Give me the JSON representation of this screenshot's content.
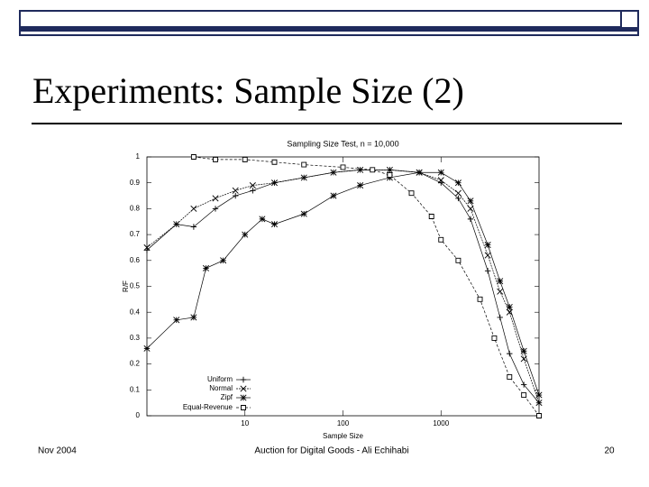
{
  "slide": {
    "title": "Experiments: Sample Size (2)",
    "footer_left": "Nov 2004",
    "footer_center": "Auction for Digital Goods - Ali Echihabi",
    "page_number": "20"
  },
  "chart_data": {
    "type": "line",
    "title": "Sampling Size Test, n = 10,000",
    "x_label": "Sample Size",
    "y_label": "R/F",
    "x_log": true,
    "xlim": [
      1,
      10000
    ],
    "xticks": [
      10,
      100,
      1000
    ],
    "ylim": [
      0,
      1
    ],
    "yticks": [
      0,
      0.1,
      0.2,
      0.3,
      0.4,
      0.5,
      0.6,
      0.7,
      0.8,
      0.9,
      1
    ],
    "legend": "lower left",
    "series": [
      {
        "name": "Uniform",
        "marker": "plus",
        "color": "#000000",
        "x": [
          1,
          2,
          3,
          5,
          8,
          12,
          20,
          40,
          80,
          150,
          300,
          600,
          1000,
          1500,
          2000,
          3000,
          4000,
          5000,
          7000,
          10000
        ],
        "values": [
          0.64,
          0.74,
          0.73,
          0.8,
          0.85,
          0.87,
          0.9,
          0.92,
          0.94,
          0.95,
          0.95,
          0.94,
          0.9,
          0.84,
          0.76,
          0.56,
          0.38,
          0.24,
          0.12,
          0.05
        ]
      },
      {
        "name": "Normal",
        "marker": "cross",
        "color": "#000000",
        "x": [
          1,
          2,
          3,
          5,
          8,
          12,
          20,
          40,
          80,
          150,
          300,
          600,
          1000,
          1500,
          2000,
          3000,
          4000,
          5000,
          7000,
          10000
        ],
        "values": [
          0.65,
          0.74,
          0.8,
          0.84,
          0.87,
          0.89,
          0.9,
          0.92,
          0.94,
          0.95,
          0.95,
          0.94,
          0.91,
          0.86,
          0.8,
          0.62,
          0.48,
          0.4,
          0.22,
          0.05
        ]
      },
      {
        "name": "Zipf",
        "marker": "star",
        "color": "#000000",
        "x": [
          1,
          2,
          3,
          4,
          6,
          10,
          15,
          20,
          40,
          80,
          150,
          300,
          600,
          1000,
          1500,
          2000,
          3000,
          4000,
          5000,
          7000,
          10000
        ],
        "values": [
          0.26,
          0.37,
          0.38,
          0.57,
          0.6,
          0.7,
          0.76,
          0.74,
          0.78,
          0.85,
          0.89,
          0.92,
          0.94,
          0.94,
          0.9,
          0.83,
          0.66,
          0.52,
          0.42,
          0.25,
          0.08
        ]
      },
      {
        "name": "Equal-Revenue",
        "marker": "square",
        "color": "#000000",
        "x": [
          3,
          5,
          10,
          20,
          40,
          100,
          200,
          300,
          500,
          800,
          1000,
          1500,
          2500,
          3500,
          5000,
          7000,
          10000
        ],
        "values": [
          1,
          0.99,
          0.99,
          0.98,
          0.97,
          0.96,
          0.95,
          0.93,
          0.86,
          0.77,
          0.68,
          0.6,
          0.45,
          0.3,
          0.15,
          0.08,
          0
        ]
      }
    ]
  }
}
